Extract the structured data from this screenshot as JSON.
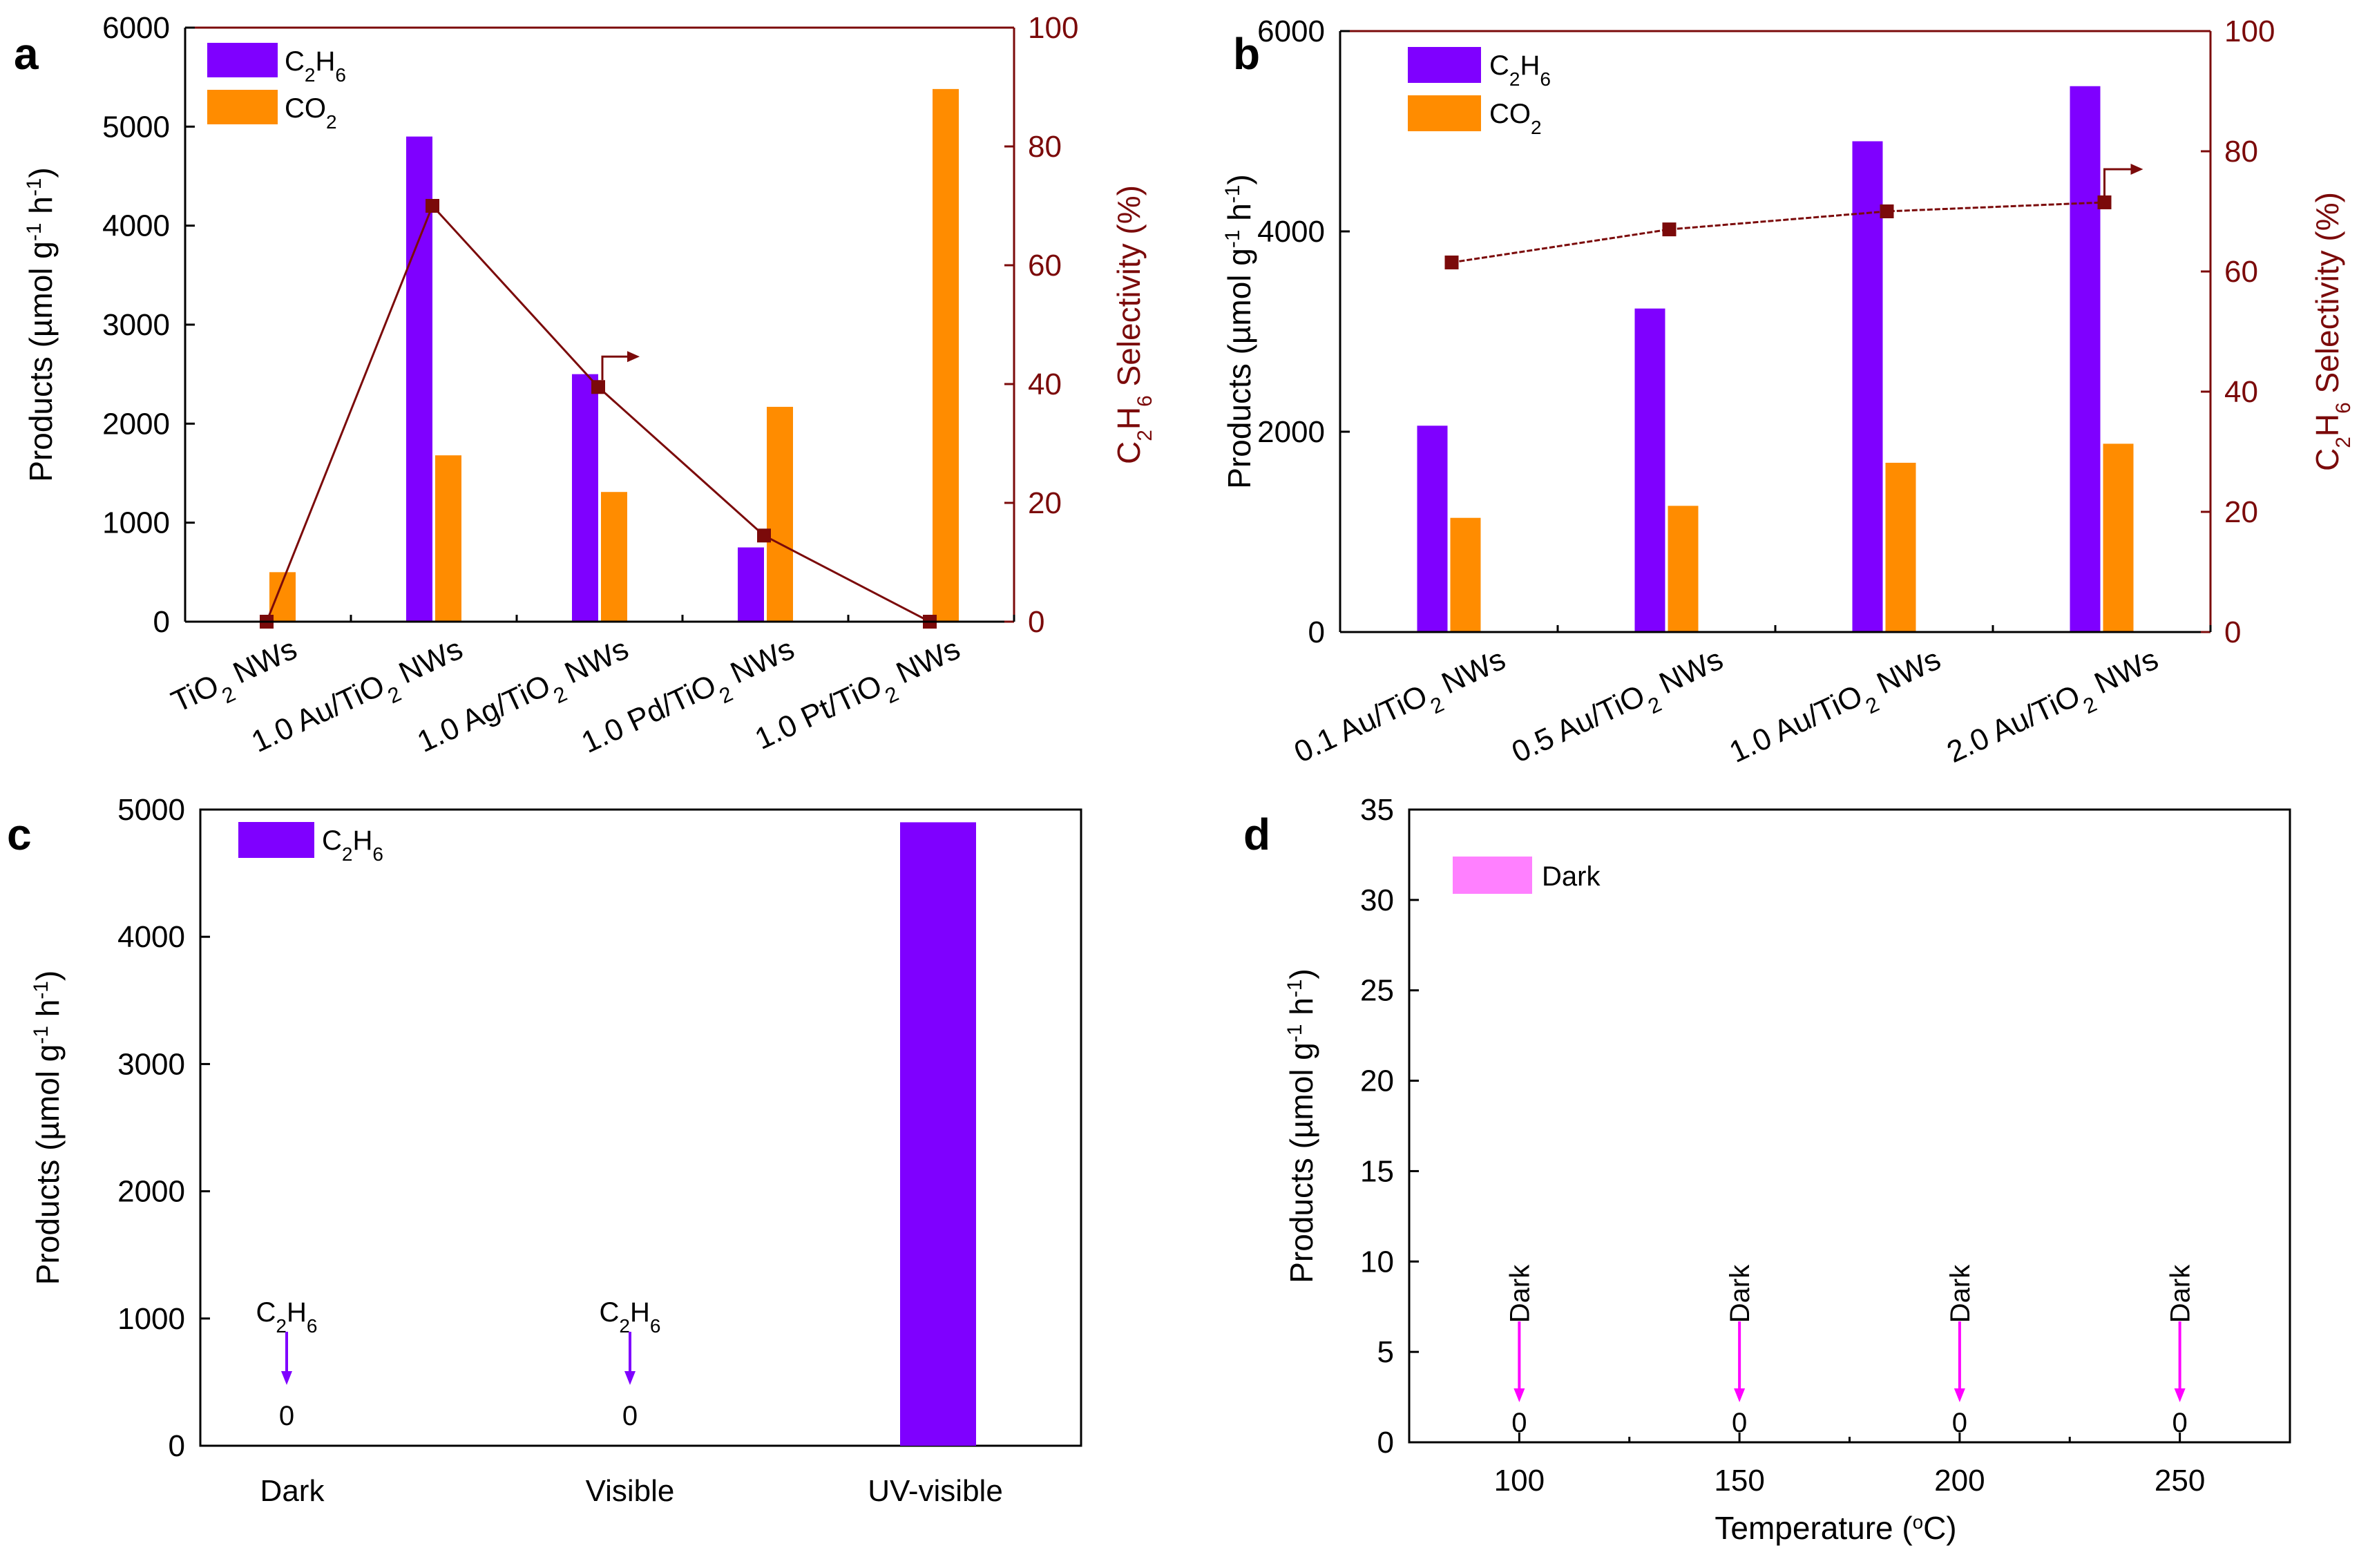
{
  "colors": {
    "c2h6": "#7f00ff",
    "co2": "#ff8c00",
    "selectivity": "#7b0a0a",
    "dark": "#ff80ff",
    "dark_text": "#ff00ff"
  },
  "chart_data": [
    {
      "panel": "a",
      "type": "bar",
      "letter": "a",
      "categories": [
        "TiO2 NWs",
        "1.0 Au/TiO2 NWs",
        "1.0 Ag/TiO2 NWs",
        "1.0 Pd/TiO2 NWs",
        "1.0 Pt/TiO2 NWs"
      ],
      "category_labels": [
        {
          "pre": "TiO",
          "sub": "2",
          "post": " NWs"
        },
        {
          "pre": "1.0 Au/TiO",
          "sub": "2",
          "post": " NWs"
        },
        {
          "pre": "1.0 Ag/TiO",
          "sub": "2",
          "post": " NWs"
        },
        {
          "pre": "1.0 Pd/TiO",
          "sub": "2",
          "post": " NWs"
        },
        {
          "pre": "1.0 Pt/TiO",
          "sub": "2",
          "post": " NWs"
        }
      ],
      "series": [
        {
          "name": "C2H6",
          "legend": {
            "p1": "C",
            "s1": "2",
            "p2": "H",
            "s2": "6"
          },
          "values": [
            0,
            4900,
            2500,
            750,
            0
          ]
        },
        {
          "name": "CO2",
          "legend": {
            "p1": "CO",
            "s1": "2",
            "p2": "",
            "s2": ""
          },
          "values": [
            500,
            1680,
            1310,
            2170,
            5380
          ]
        }
      ],
      "selectivity": [
        0,
        70,
        39.5,
        14.5,
        0
      ],
      "ylim": [
        0,
        6000
      ],
      "yticks": [
        "0",
        "1000",
        "2000",
        "3000",
        "4000",
        "5000",
        "6000"
      ],
      "y2lim": [
        0,
        100
      ],
      "y2ticks": [
        "0",
        "20",
        "40",
        "60",
        "80",
        "100"
      ],
      "ylabel": {
        "a": "Products (µmol g",
        "b": "-1",
        "c": " h",
        "d": "-1",
        "e": ")"
      },
      "y2label": {
        "a": "C",
        "b": "2",
        "c": "H",
        "d": "6",
        "e": " Selectivity (%)"
      }
    },
    {
      "panel": "b",
      "type": "bar",
      "letter": "b",
      "categories": [
        "0.1 Au/TiO2 NWs",
        "0.5 Au/TiO2 NWs",
        "1.0 Au/TiO2 NWs",
        "2.0 Au/TiO2 NWs"
      ],
      "category_labels": [
        {
          "pre": "0.1 Au/TiO",
          "sub": "2",
          "post": " NWs"
        },
        {
          "pre": "0.5 Au/TiO",
          "sub": "2",
          "post": " NWs"
        },
        {
          "pre": "1.0 Au/TiO",
          "sub": "2",
          "post": " NWs"
        },
        {
          "pre": "2.0 Au/TiO",
          "sub": "2",
          "post": " NWs"
        }
      ],
      "series": [
        {
          "name": "C2H6",
          "legend": {
            "p1": "C",
            "s1": "2",
            "p2": "H",
            "s2": "6"
          },
          "values": [
            2060,
            3230,
            4900,
            5450
          ]
        },
        {
          "name": "CO2",
          "legend": {
            "p1": "CO",
            "s1": "2",
            "p2": "",
            "s2": ""
          },
          "values": [
            1140,
            1260,
            1690,
            1880
          ]
        }
      ],
      "selectivity": [
        61.5,
        67,
        70,
        71.5
      ],
      "ylim": [
        0,
        6000
      ],
      "yticks": [
        "0",
        "2000",
        "4000",
        "6000"
      ],
      "y2lim": [
        0,
        100
      ],
      "y2ticks": [
        "0",
        "20",
        "40",
        "60",
        "80",
        "100"
      ],
      "ylabel": {
        "a": "Products (µmol g",
        "b": "-1",
        "c": " h",
        "d": "-1",
        "e": ")"
      },
      "y2label": {
        "a": "C",
        "b": "2",
        "c": "H",
        "d": "6",
        "e": " Selectivity (%)"
      }
    },
    {
      "panel": "c",
      "type": "bar",
      "letter": "c",
      "categories": [
        "Dark",
        "Visible",
        "UV-visible"
      ],
      "series": [
        {
          "name": "C2H6",
          "legend": {
            "p1": "C",
            "s1": "2",
            "p2": "H",
            "s2": "6"
          },
          "values": [
            0,
            0,
            4900
          ]
        }
      ],
      "annotations": [
        {
          "category": "Dark",
          "text": {
            "p1": "C",
            "s1": "2",
            "p2": "H",
            "s2": "6"
          },
          "value": "0"
        },
        {
          "category": "Visible",
          "text": {
            "p1": "C",
            "s1": "2",
            "p2": "H",
            "s2": "6"
          },
          "value": "0"
        }
      ],
      "ylim": [
        0,
        5000
      ],
      "yticks": [
        "0",
        "1000",
        "2000",
        "3000",
        "4000",
        "5000"
      ],
      "ylabel": {
        "a": "Products (µmol g",
        "b": "-1",
        "c": " h",
        "d": "-1",
        "e": ")"
      }
    },
    {
      "panel": "d",
      "type": "bar",
      "letter": "d",
      "x": [
        100,
        150,
        200,
        250
      ],
      "xticks": [
        "100",
        "150",
        "200",
        "250"
      ],
      "xlim": [
        75,
        275
      ],
      "series": [
        {
          "name": "Dark",
          "legend_text": "Dark",
          "values": [
            0,
            0,
            0,
            0
          ]
        }
      ],
      "annotations": [
        {
          "x": 100,
          "text": "Dark",
          "value": "0"
        },
        {
          "x": 150,
          "text": "Dark",
          "value": "0"
        },
        {
          "x": 200,
          "text": "Dark",
          "value": "0"
        },
        {
          "x": 250,
          "text": "Dark",
          "value": "0"
        }
      ],
      "ylim": [
        0,
        35
      ],
      "yticks": [
        "0",
        "5",
        "10",
        "15",
        "20",
        "25",
        "30",
        "35"
      ],
      "ylabel": {
        "a": "Products (µmol g",
        "b": "-1",
        "c": " h",
        "d": "-1",
        "e": ")"
      },
      "xlabel": {
        "a": "Temperature (",
        "b": "o",
        "c": "C)"
      }
    }
  ]
}
